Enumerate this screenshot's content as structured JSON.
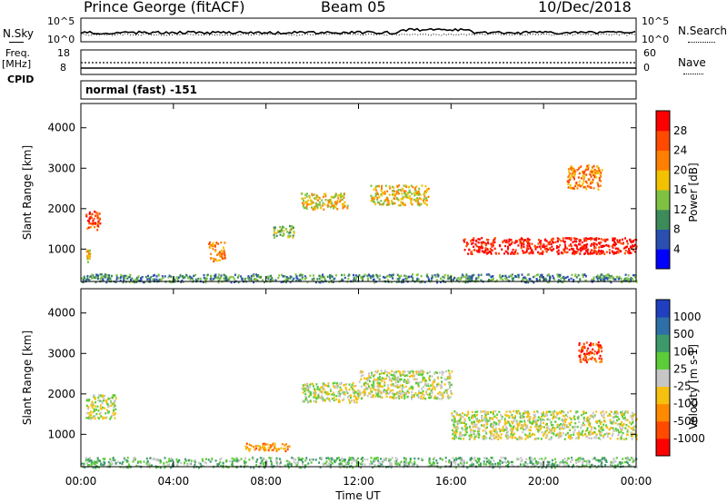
{
  "header": {
    "station": "Prince George (fitACF)",
    "beam": "Beam 05",
    "date": "10/Dec/2018"
  },
  "strips": {
    "nsky_label": "N.Sky",
    "nsky_top": "10^5",
    "nsky_bottom": "10^0",
    "nsearch_label": "N.Search",
    "nsearch_top": "10^5",
    "nsearch_bottom": "10^0",
    "freq_label": "Freq.",
    "freq_unit": "[MHz]",
    "freq_top": "18",
    "freq_bottom": "8",
    "nave_label": "Nave",
    "nave_top": "60",
    "nave_bottom": "0",
    "cpid_label": "CPID",
    "cpid_text": "normal (fast) -151"
  },
  "colors": {
    "power": [
      "#0000ff",
      "#2a4fb0",
      "#3d8a5a",
      "#7fc242",
      "#f2c200",
      "#ff8000",
      "#ff4a00",
      "#ff0000"
    ],
    "velocity": [
      "#2040c0",
      "#2e6fa8",
      "#3c9a6a",
      "#5ccc38",
      "#c6c6c6",
      "#f5c010",
      "#ff8a00",
      "#ff4a00",
      "#ff0000"
    ],
    "background": "#ffffff"
  },
  "chart_data": [
    {
      "type": "heatmap",
      "title": "",
      "ylabel": "Slant Range [km]",
      "xlabel": "",
      "x_ticks": [
        "00:00",
        "04:00",
        "08:00",
        "12:00",
        "16:00",
        "20:00",
        "00:00"
      ],
      "y_ticks": [
        "1000",
        "2000",
        "3000",
        "4000"
      ],
      "ylim": [
        200,
        4600
      ],
      "xlim_hours": [
        0,
        24
      ],
      "colorbar": {
        "label": "Power [dB]",
        "ticks": [
          "4",
          "8",
          "12",
          "16",
          "20",
          "24",
          "28"
        ]
      },
      "features": [
        {
          "t0": 0.2,
          "t1": 0.8,
          "r0": 1500,
          "r1": 2000,
          "level": 6
        },
        {
          "t0": 0.2,
          "t1": 0.4,
          "r0": 700,
          "r1": 1000,
          "level": 4
        },
        {
          "t0": 5.5,
          "t1": 6.2,
          "r0": 700,
          "r1": 1200,
          "level": 5
        },
        {
          "t0": 8.3,
          "t1": 9.2,
          "r0": 1300,
          "r1": 1600,
          "level": 3
        },
        {
          "t0": 9.5,
          "t1": 11.5,
          "r0": 2000,
          "r1": 2400,
          "level": 4
        },
        {
          "t0": 12.5,
          "t1": 15.0,
          "r0": 2100,
          "r1": 2600,
          "level": 4
        },
        {
          "t0": 16.5,
          "t1": 24.0,
          "r0": 900,
          "r1": 1300,
          "level": 7
        },
        {
          "t0": 21.0,
          "t1": 22.5,
          "r0": 2500,
          "r1": 3100,
          "level": 5
        },
        {
          "t0": 0.0,
          "t1": 24.0,
          "r0": 200,
          "r1": 400,
          "level": 2
        }
      ]
    },
    {
      "type": "heatmap",
      "title": "",
      "ylabel": "Slant Range [km]",
      "xlabel": "Time UT",
      "x_ticks": [
        "00:00",
        "04:00",
        "08:00",
        "12:00",
        "16:00",
        "20:00",
        "00:00"
      ],
      "y_ticks": [
        "1000",
        "2000",
        "3000",
        "4000"
      ],
      "ylim": [
        200,
        4600
      ],
      "xlim_hours": [
        0,
        24
      ],
      "colorbar": {
        "label": "Velocity [m s-1]",
        "ticks": [
          "1000",
          "500",
          "100",
          "25",
          "-25",
          "-100",
          "-500",
          "-1000"
        ]
      },
      "features": [
        {
          "t0": 0.2,
          "t1": 1.5,
          "r0": 1400,
          "r1": 2000,
          "level": 4
        },
        {
          "t0": 9.5,
          "t1": 12.0,
          "r0": 1800,
          "r1": 2300,
          "level": 4
        },
        {
          "t0": 12.0,
          "t1": 16.0,
          "r0": 1900,
          "r1": 2600,
          "level": 4
        },
        {
          "t0": 16.0,
          "t1": 24.0,
          "r0": 900,
          "r1": 1600,
          "level": 4
        },
        {
          "t0": 21.5,
          "t1": 22.5,
          "r0": 2800,
          "r1": 3300,
          "level": 7
        },
        {
          "t0": 7.0,
          "t1": 9.0,
          "r0": 600,
          "r1": 800,
          "level": 6
        },
        {
          "t0": 0.0,
          "t1": 24.0,
          "r0": 200,
          "r1": 450,
          "level": 3
        }
      ]
    }
  ]
}
